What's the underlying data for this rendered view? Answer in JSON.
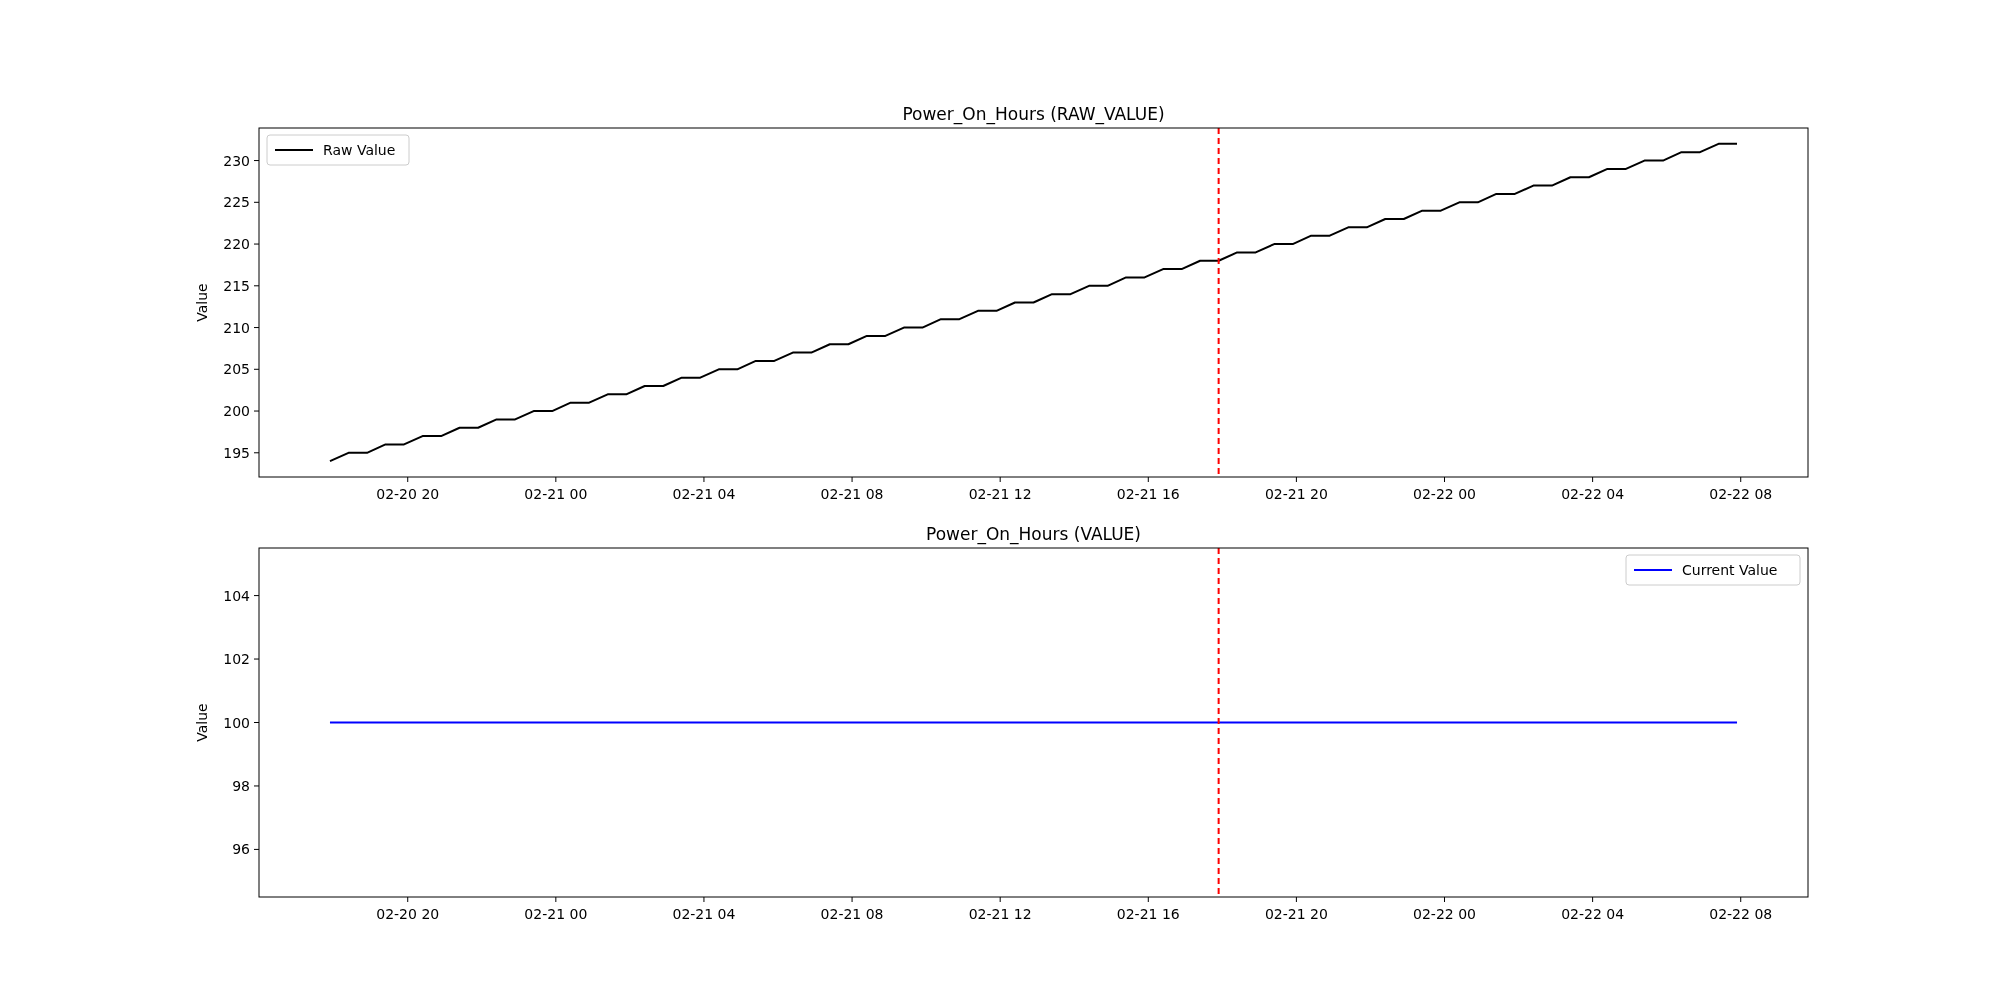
{
  "chart_data": [
    {
      "type": "line",
      "title": "Power_On_Hours (RAW_VALUE)",
      "ylabel": "Value",
      "legend": "top left",
      "x": [
        "--02-20T17:54",
        "--02-20T18:24",
        "--02-20T18:54",
        "--02-20T19:24",
        "--02-20T19:54",
        "--02-20T20:24",
        "--02-20T20:54",
        "--02-20T21:24",
        "--02-20T21:54",
        "--02-20T22:24",
        "--02-20T22:54",
        "--02-20T23:24",
        "--02-20T23:54",
        "--02-21T00:24",
        "--02-21T00:54",
        "--02-21T01:24",
        "--02-21T01:54",
        "--02-21T02:24",
        "--02-21T02:54",
        "--02-21T03:24",
        "--02-21T03:54",
        "--02-21T04:24",
        "--02-21T04:54",
        "--02-21T05:24",
        "--02-21T05:54",
        "--02-21T06:24",
        "--02-21T06:54",
        "--02-21T07:24",
        "--02-21T07:54",
        "--02-21T08:24",
        "--02-21T08:54",
        "--02-21T09:24",
        "--02-21T09:54",
        "--02-21T10:24",
        "--02-21T10:54",
        "--02-21T11:24",
        "--02-21T11:54",
        "--02-21T12:24",
        "--02-21T12:54",
        "--02-21T13:24",
        "--02-21T13:54",
        "--02-21T14:24",
        "--02-21T14:54",
        "--02-21T15:24",
        "--02-21T15:54",
        "--02-21T16:24",
        "--02-21T16:54",
        "--02-21T17:24",
        "--02-21T17:54",
        "--02-21T18:24",
        "--02-21T18:54",
        "--02-21T19:24",
        "--02-21T19:54",
        "--02-21T20:24",
        "--02-21T20:54",
        "--02-21T21:24",
        "--02-21T21:54",
        "--02-21T22:24",
        "--02-21T22:54",
        "--02-21T23:24",
        "--02-21T23:54",
        "--02-22T00:24",
        "--02-22T00:54",
        "--02-22T01:24",
        "--02-22T01:54",
        "--02-22T02:24",
        "--02-22T02:54",
        "--02-22T03:24",
        "--02-22T03:54",
        "--02-22T04:24",
        "--02-22T04:54",
        "--02-22T05:24",
        "--02-22T05:54",
        "--02-22T06:24",
        "--02-22T06:54",
        "--02-22T07:24",
        "--02-22T07:54"
      ],
      "series": [
        {
          "name": "Raw Value",
          "color": "#000000",
          "values": [
            194,
            195,
            195,
            196,
            196,
            197,
            197,
            198,
            198,
            199,
            199,
            200,
            200,
            201,
            201,
            202,
            202,
            203,
            203,
            204,
            204,
            205,
            205,
            206,
            206,
            207,
            207,
            208,
            208,
            209,
            209,
            210,
            210,
            211,
            211,
            212,
            212,
            213,
            213,
            214,
            214,
            215,
            215,
            216,
            216,
            217,
            217,
            218,
            218,
            219,
            219,
            220,
            220,
            221,
            221,
            222,
            222,
            223,
            223,
            224,
            224,
            225,
            225,
            226,
            226,
            227,
            227,
            228,
            228,
            229,
            229,
            230,
            230,
            231,
            231,
            232,
            232
          ]
        }
      ],
      "xlim": [
        "--02-20T15:59",
        "--02-22T09:49"
      ],
      "xticks": [
        {
          "value": "--02-20T20:00",
          "label": "02-20 20"
        },
        {
          "value": "--02-21T00:00",
          "label": "02-21 00"
        },
        {
          "value": "--02-21T04:00",
          "label": "02-21 04"
        },
        {
          "value": "--02-21T08:00",
          "label": "02-21 08"
        },
        {
          "value": "--02-21T12:00",
          "label": "02-21 12"
        },
        {
          "value": "--02-21T16:00",
          "label": "02-21 16"
        },
        {
          "value": "--02-21T20:00",
          "label": "02-21 20"
        },
        {
          "value": "--02-22T00:00",
          "label": "02-22 00"
        },
        {
          "value": "--02-22T04:00",
          "label": "02-22 04"
        },
        {
          "value": "--02-22T08:00",
          "label": "02-22 08"
        }
      ],
      "ylim": [
        192.1,
        233.9
      ],
      "yticks": [
        195,
        200,
        205,
        210,
        215,
        220,
        225,
        230
      ],
      "ref_lines": [
        {
          "axis": "x",
          "value": "--02-21T17:54",
          "color": "#ff0000",
          "line_style": "dashed"
        }
      ]
    },
    {
      "type": "line",
      "title": "Power_On_Hours (VALUE)",
      "ylabel": "Value",
      "legend": "top right",
      "x": [
        "--02-20T17:54",
        "--02-20T18:24",
        "--02-20T18:54",
        "--02-20T19:24",
        "--02-20T19:54",
        "--02-20T20:24",
        "--02-20T20:54",
        "--02-20T21:24",
        "--02-20T21:54",
        "--02-20T22:24",
        "--02-20T22:54",
        "--02-20T23:24",
        "--02-20T23:54",
        "--02-21T00:24",
        "--02-21T00:54",
        "--02-21T01:24",
        "--02-21T01:54",
        "--02-21T02:24",
        "--02-21T02:54",
        "--02-21T03:24",
        "--02-21T03:54",
        "--02-21T04:24",
        "--02-21T04:54",
        "--02-21T05:24",
        "--02-21T05:54",
        "--02-21T06:24",
        "--02-21T06:54",
        "--02-21T07:24",
        "--02-21T07:54",
        "--02-21T08:24",
        "--02-21T08:54",
        "--02-21T09:24",
        "--02-21T09:54",
        "--02-21T10:24",
        "--02-21T10:54",
        "--02-21T11:24",
        "--02-21T11:54",
        "--02-21T12:24",
        "--02-21T12:54",
        "--02-21T13:24",
        "--02-21T13:54",
        "--02-21T14:24",
        "--02-21T14:54",
        "--02-21T15:24",
        "--02-21T15:54",
        "--02-21T16:24",
        "--02-21T16:54",
        "--02-21T17:24",
        "--02-21T17:54",
        "--02-21T18:24",
        "--02-21T18:54",
        "--02-21T19:24",
        "--02-21T19:54",
        "--02-21T20:24",
        "--02-21T20:54",
        "--02-21T21:24",
        "--02-21T21:54",
        "--02-21T22:24",
        "--02-21T22:54",
        "--02-21T23:24",
        "--02-21T23:54",
        "--02-22T00:24",
        "--02-22T00:54",
        "--02-22T01:24",
        "--02-22T01:54",
        "--02-22T02:24",
        "--02-22T02:54",
        "--02-22T03:24",
        "--02-22T03:54",
        "--02-22T04:24",
        "--02-22T04:54",
        "--02-22T05:24",
        "--02-22T05:54",
        "--02-22T06:24",
        "--02-22T06:54",
        "--02-22T07:24",
        "--02-22T07:54"
      ],
      "series": [
        {
          "name": "Current Value",
          "color": "#0000ff",
          "values": [
            100,
            100,
            100,
            100,
            100,
            100,
            100,
            100,
            100,
            100,
            100,
            100,
            100,
            100,
            100,
            100,
            100,
            100,
            100,
            100,
            100,
            100,
            100,
            100,
            100,
            100,
            100,
            100,
            100,
            100,
            100,
            100,
            100,
            100,
            100,
            100,
            100,
            100,
            100,
            100,
            100,
            100,
            100,
            100,
            100,
            100,
            100,
            100,
            100,
            100,
            100,
            100,
            100,
            100,
            100,
            100,
            100,
            100,
            100,
            100,
            100,
            100,
            100,
            100,
            100,
            100,
            100,
            100,
            100,
            100,
            100,
            100,
            100,
            100,
            100,
            100,
            100
          ]
        }
      ],
      "xlim": [
        "--02-20T15:59",
        "--02-22T09:49"
      ],
      "xticks": [
        {
          "value": "--02-20T20:00",
          "label": "02-20 20"
        },
        {
          "value": "--02-21T00:00",
          "label": "02-21 00"
        },
        {
          "value": "--02-21T04:00",
          "label": "02-21 04"
        },
        {
          "value": "--02-21T08:00",
          "label": "02-21 08"
        },
        {
          "value": "--02-21T12:00",
          "label": "02-21 12"
        },
        {
          "value": "--02-21T16:00",
          "label": "02-21 16"
        },
        {
          "value": "--02-21T20:00",
          "label": "02-21 20"
        },
        {
          "value": "--02-22T00:00",
          "label": "02-22 00"
        },
        {
          "value": "--02-22T04:00",
          "label": "02-22 04"
        },
        {
          "value": "--02-22T08:00",
          "label": "02-22 08"
        }
      ],
      "ylim": [
        94.5,
        105.5
      ],
      "yticks": [
        96,
        98,
        100,
        102,
        104
      ],
      "ref_lines": [
        {
          "axis": "x",
          "value": "--02-21T17:54",
          "color": "#ff0000",
          "line_style": "dashed"
        }
      ]
    }
  ]
}
